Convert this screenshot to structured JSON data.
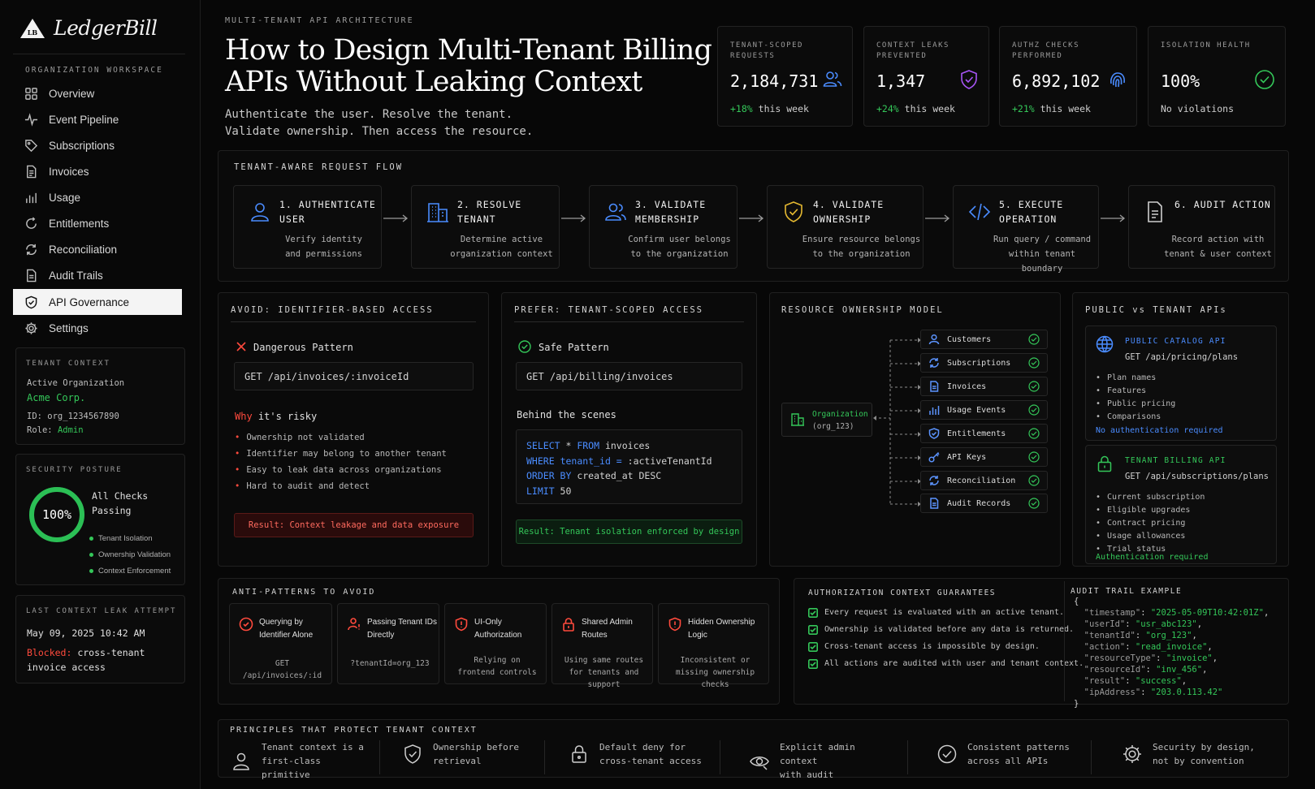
{
  "app": {
    "name": "LedgerBill",
    "logo_text": "LB"
  },
  "sidebar": {
    "workspace_label": "ORGANIZATION WORKSPACE",
    "items": [
      {
        "label": "Overview",
        "icon": "grid-icon"
      },
      {
        "label": "Event Pipeline",
        "icon": "pulse-icon"
      },
      {
        "label": "Subscriptions",
        "icon": "tag-icon"
      },
      {
        "label": "Invoices",
        "icon": "document-icon"
      },
      {
        "label": "Usage",
        "icon": "bar-chart-icon"
      },
      {
        "label": "Entitlements",
        "icon": "cycle-icon"
      },
      {
        "label": "Reconciliation",
        "icon": "refresh-icon"
      },
      {
        "label": "Audit Trails",
        "icon": "file-icon"
      },
      {
        "label": "API Governance",
        "icon": "shield-check-icon",
        "active": true
      },
      {
        "label": "Settings",
        "icon": "gear-icon"
      }
    ],
    "tenant_context": {
      "title": "TENANT CONTEXT",
      "active_label": "Active Organization",
      "org_name": "Acme Corp.",
      "id_line": "ID: org_1234567890",
      "role_label": "Role:",
      "role_value": "Admin"
    },
    "security_posture": {
      "title": "SECURITY POSTURE",
      "percent": "100%",
      "percent_value": 100,
      "status_line1": "All Checks",
      "status_line2": "Passing",
      "checks": [
        "Tenant Isolation",
        "Ownership Validation",
        "Context Enforcement"
      ]
    },
    "last_leak": {
      "title": "LAST CONTEXT LEAK ATTEMPT",
      "timestamp": "May 09, 2025 10:42 AM",
      "blocked_label": "Blocked:",
      "blocked_text": "cross-tenant",
      "blocked_text2": "invoice access"
    }
  },
  "header": {
    "eyebrow": "MULTI-TENANT API ARCHITECTURE",
    "title": "How to Design Multi-Tenant Billing APIs Without Leaking Context",
    "subtitle_line1": "Authenticate the user. Resolve the tenant.",
    "subtitle_line2": "Validate ownership. Then access the resource."
  },
  "stats": [
    {
      "label": "TENANT-SCOPED REQUESTS",
      "value": "2,184,731",
      "delta": "+18%",
      "delta_text": "this week",
      "icon": "users-icon",
      "color": "#4a8cff"
    },
    {
      "label": "CONTEXT LEAKS PREVENTED",
      "value": "1,347",
      "delta": "+24%",
      "delta_text": "this week",
      "icon": "shield-check-icon",
      "color": "#a855f7"
    },
    {
      "label": "AUTHZ CHECKS PERFORMED",
      "value": "6,892,102",
      "delta": "+21%",
      "delta_text": "this week",
      "icon": "fingerprint-icon",
      "color": "#4a8cff"
    },
    {
      "label": "ISOLATION HEALTH",
      "value": "100%",
      "delta": "",
      "delta_text": "No violations",
      "icon": "check-circle-icon",
      "color": "#34c759"
    }
  ],
  "flow": {
    "title": "TENANT-AWARE REQUEST FLOW",
    "steps": [
      {
        "title": "1. AUTHENTICATE USER",
        "desc1": "Verify identity",
        "desc2": "and permissions",
        "icon": "user-icon",
        "color": "#4a8cff"
      },
      {
        "title": "2. RESOLVE TENANT",
        "desc1": "Determine active",
        "desc2": "organization context",
        "icon": "building-icon",
        "color": "#4a8cff"
      },
      {
        "title": "3. VALIDATE MEMBERSHIP",
        "desc1": "Confirm user belongs",
        "desc2": "to the organization",
        "icon": "users-icon",
        "color": "#4a8cff"
      },
      {
        "title": "4. VALIDATE OWNERSHIP",
        "desc1": "Ensure resource belongs",
        "desc2": "to the organization",
        "icon": "shield-check-icon",
        "color": "#e5b931"
      },
      {
        "title": "5. EXECUTE OPERATION",
        "desc1": "Run query / command",
        "desc2": "within tenant boundary",
        "icon": "code-icon",
        "color": "#4a8cff"
      },
      {
        "title": "6. AUDIT ACTION",
        "desc1": "Record action with",
        "desc2": "tenant & user context",
        "icon": "document-icon",
        "color": "#cfcfcf"
      }
    ]
  },
  "avoid": {
    "title": "AVOID: IDENTIFIER-BASED ACCESS",
    "pattern_label": "Dangerous Pattern",
    "endpoint": "GET /api/invoices/:invoiceId",
    "why_word": "Why",
    "why_rest": "it's risky",
    "risks": [
      "Ownership not validated",
      "Identifier may belong to another tenant",
      "Easy to leak data across organizations",
      "Hard to audit and detect"
    ],
    "result": "Result: Context leakage and data exposure"
  },
  "prefer": {
    "title": "PREFER: TENANT-SCOPED ACCESS",
    "pattern_label": "Safe Pattern",
    "endpoint": "GET /api/billing/invoices",
    "behind": "Behind the scenes",
    "sql": [
      {
        "kw": "SELECT",
        "rest": " * ",
        "kw2": "FROM",
        "rest2": " invoices"
      },
      {
        "kw": "WHERE",
        "rest": " ",
        "kw2": "tenant_id =",
        "rest2": " :activeTenantId"
      },
      {
        "kw": "ORDER BY",
        "rest": " created_at DESC",
        "kw2": "",
        "rest2": ""
      },
      {
        "kw": "LIMIT",
        "rest": " 50",
        "kw2": "",
        "rest2": ""
      }
    ],
    "result": "Result: Tenant isolation enforced by design"
  },
  "ownership": {
    "title": "RESOURCE OWNERSHIP MODEL",
    "org_label": "Organization",
    "org_id": "(org_123)",
    "resources": [
      {
        "label": "Customers",
        "icon": "user-icon"
      },
      {
        "label": "Subscriptions",
        "icon": "refresh-icon"
      },
      {
        "label": "Invoices",
        "icon": "document-icon"
      },
      {
        "label": "Usage Events",
        "icon": "bar-chart-icon"
      },
      {
        "label": "Entitlements",
        "icon": "shield-check-icon"
      },
      {
        "label": "API Keys",
        "icon": "key-icon"
      },
      {
        "label": "Reconciliation",
        "icon": "refresh-icon"
      },
      {
        "label": "Audit Records",
        "icon": "document-icon"
      }
    ]
  },
  "public_vs_tenant": {
    "title": "PUBLIC vs TENANT APIs",
    "public": {
      "title": "PUBLIC CATALOG API",
      "endpoint": "GET /api/pricing/plans",
      "items": [
        "Plan names",
        "Features",
        "Public pricing",
        "Comparisons"
      ],
      "footer": "No authentication required"
    },
    "tenant": {
      "title": "TENANT BILLING API",
      "endpoint": "GET /api/subscriptions/plans",
      "items": [
        "Current subscription",
        "Eligible upgrades",
        "Contract pricing",
        "Usage allowances",
        "Trial status"
      ],
      "footer": "Authentication required"
    }
  },
  "anti_patterns": {
    "title": "ANTI-PATTERNS TO AVOID",
    "items": [
      {
        "title": "Querying by Identifier Alone",
        "desc": "GET /api/invoices/:id",
        "icon": "alert-circle-icon"
      },
      {
        "title": "Passing Tenant IDs Directly",
        "desc": "?tenantId=org_123",
        "icon": "user-alert-icon"
      },
      {
        "title": "UI-Only Authorization",
        "desc": "Relying on frontend controls",
        "icon": "shield-alert-icon"
      },
      {
        "title": "Shared Admin Routes",
        "desc": "Using same routes for tenants and support",
        "icon": "lock-icon"
      },
      {
        "title": "Hidden Ownership Logic",
        "desc": "Inconsistent or missing ownership checks",
        "icon": "shield-alert-icon"
      }
    ]
  },
  "guarantees": {
    "title": "AUTHORIZATION CONTEXT GUARANTEES",
    "items": [
      "Every request is evaluated with an active tenant.",
      "Ownership is validated before any data is returned.",
      "Cross-tenant access is impossible by design.",
      "All actions are audited with user and tenant context."
    ]
  },
  "audit": {
    "title": "AUDIT TRAIL EXAMPLE",
    "open": "{",
    "close": "}",
    "fields": [
      {
        "key": "\"timestamp\"",
        "value": "\"2025-05-09T10:42:01Z\""
      },
      {
        "key": "\"userId\"",
        "value": "\"usr_abc123\""
      },
      {
        "key": "\"tenantId\"",
        "value": "\"org_123\""
      },
      {
        "key": "\"action\"",
        "value": "\"read_invoice\""
      },
      {
        "key": "\"resourceType\"",
        "value": "\"invoice\""
      },
      {
        "key": "\"resourceId\"",
        "value": "\"inv_456\""
      },
      {
        "key": "\"result\"",
        "value": "\"success\""
      },
      {
        "key": "\"ipAddress\"",
        "value": "\"203.0.113.42\""
      }
    ]
  },
  "principles": {
    "title": "PRINCIPLES THAT PROTECT TENANT CONTEXT",
    "items": [
      {
        "l1": "Tenant context is a",
        "l2": "first-class primitive",
        "icon": "user-icon"
      },
      {
        "l1": "Ownership before",
        "l2": "retrieval",
        "icon": "shield-check-icon"
      },
      {
        "l1": "Default deny for",
        "l2": "cross-tenant access",
        "icon": "lock-icon"
      },
      {
        "l1": "Explicit admin context",
        "l2": "with audit",
        "icon": "eye-icon"
      },
      {
        "l1": "Consistent patterns",
        "l2": "across all APIs",
        "icon": "check-circle-icon"
      },
      {
        "l1": "Security by design,",
        "l2": "not by convention",
        "icon": "gear-icon"
      }
    ]
  }
}
